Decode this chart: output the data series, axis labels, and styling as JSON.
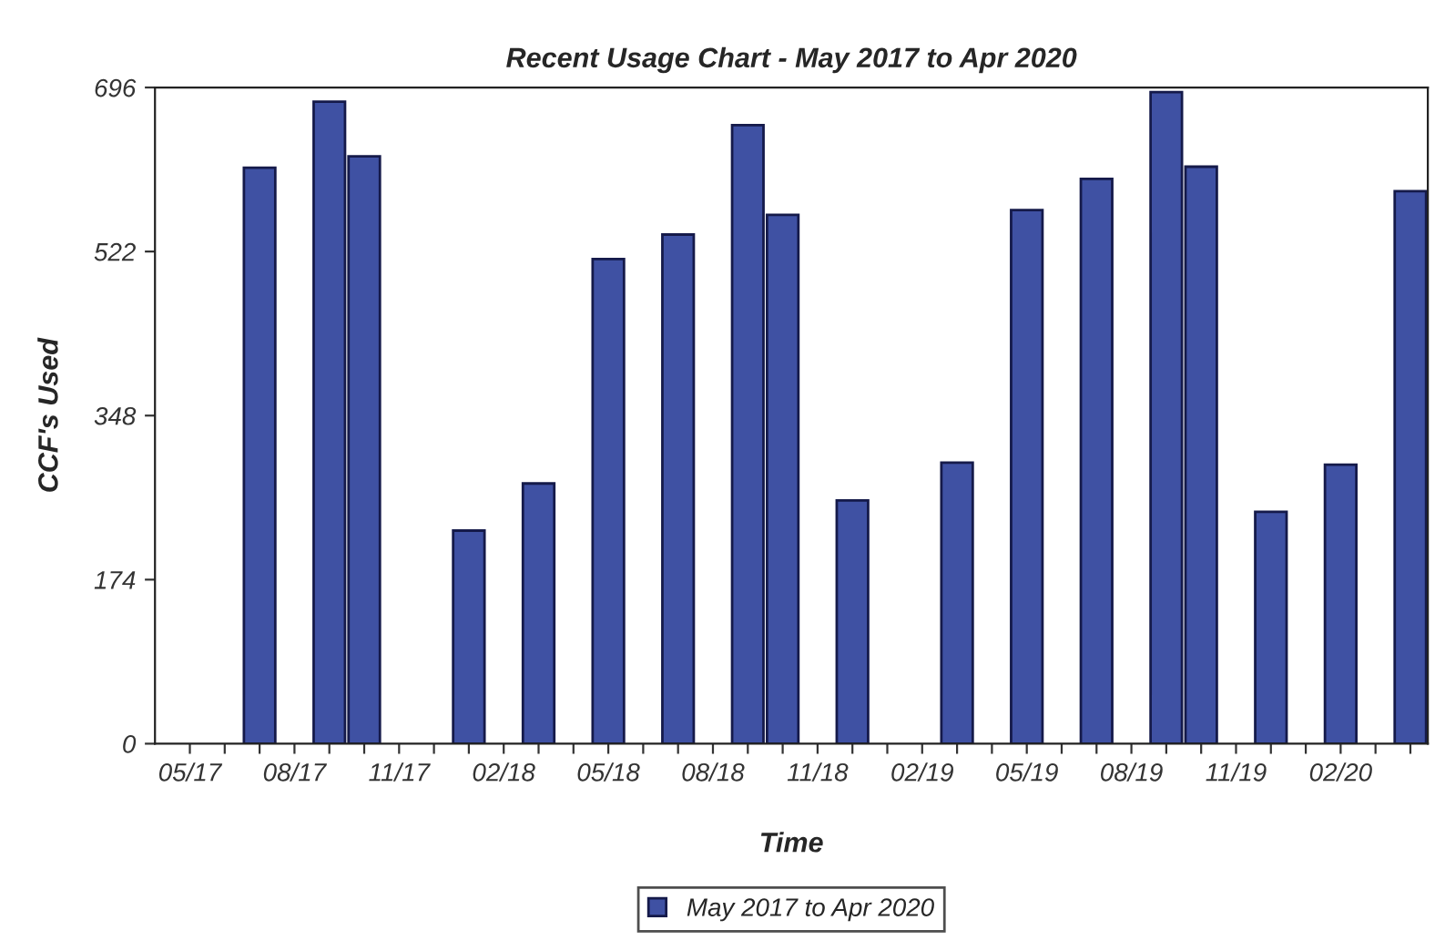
{
  "chart_data": {
    "type": "bar",
    "title": "Recent Usage Chart - May 2017 to Apr 2020",
    "xlabel": "Time",
    "ylabel": "CCF's Used",
    "categories": [
      "05/17",
      null,
      null,
      "08/17",
      null,
      null,
      "11/17",
      null,
      null,
      "02/18",
      null,
      null,
      "05/18",
      null,
      null,
      "08/18",
      null,
      null,
      "11/18",
      null,
      null,
      "02/19",
      null,
      null,
      "05/19",
      null,
      null,
      "08/19",
      null,
      null,
      "11/19",
      null,
      null,
      "02/20",
      null,
      null
    ],
    "series": [
      {
        "name": "May 2017 to Apr 2020",
        "color": "#3f51a3",
        "values": [
          null,
          null,
          611,
          null,
          681,
          623,
          null,
          null,
          226,
          null,
          276,
          null,
          514,
          null,
          540,
          null,
          656,
          561,
          null,
          258,
          null,
          null,
          298,
          null,
          566,
          null,
          599,
          null,
          691,
          612,
          null,
          246,
          null,
          296,
          null,
          586
        ]
      }
    ],
    "ylim": [
      0,
      696
    ],
    "yticks": [
      0,
      174,
      348,
      522,
      696
    ],
    "grid": false,
    "legend": "bottom"
  }
}
